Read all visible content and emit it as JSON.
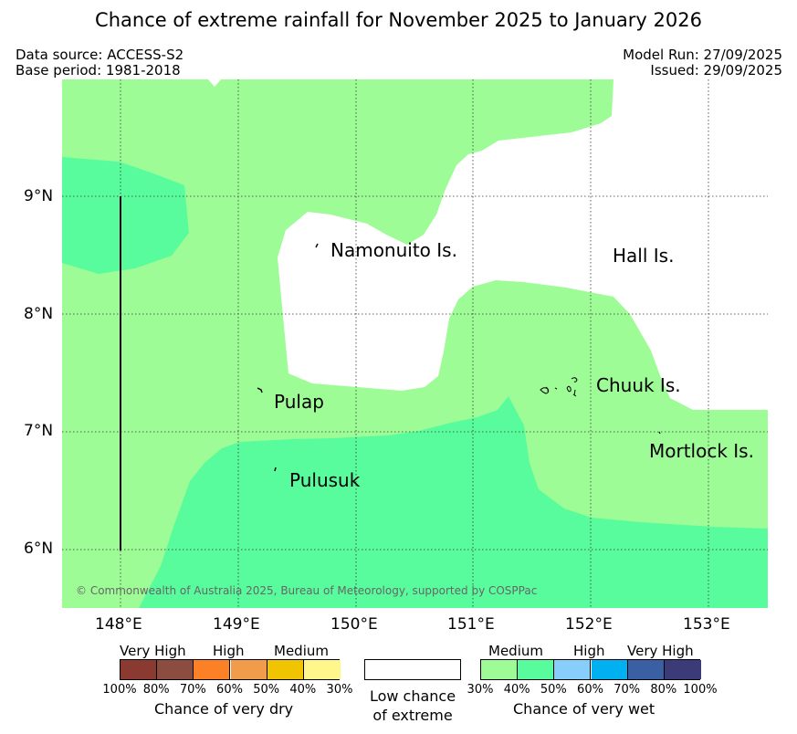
{
  "title": "Chance of extreme rainfall for November 2025 to January 2026",
  "meta": {
    "data_source": "Data source: ACCESS-S2",
    "base_period": "Base period: 1981-2018",
    "model_run": "Model Run: 27/09/2025",
    "issued": "Issued: 29/09/2025"
  },
  "map": {
    "copyright": "© Commonwealth of Australia 2025, Bureau of Meteorology, supported by COSPPac",
    "lat_ticks": [
      "9°N",
      "8°N",
      "7°N",
      "6°N"
    ],
    "lon_ticks": [
      "148°E",
      "149°E",
      "150°E",
      "151°E",
      "152°E",
      "153°E"
    ],
    "places": {
      "namonuito": "Namonuito Is.",
      "hall": "Hall Is.",
      "chuuk": "Chuuk Is.",
      "pulap": "Pulap",
      "mortlock": "Mortlock Is.",
      "pulusuk": "Pulusuk"
    },
    "colors": {
      "wet_medium": "#9efc96",
      "wet_high": "#58fc9c",
      "low_chance": "#ffffff"
    }
  },
  "legend": {
    "dry": {
      "head_very_high": "Very High",
      "head_high": "High",
      "head_medium": "Medium",
      "ticks": [
        "100%",
        "80%",
        "70%",
        "60%",
        "50%",
        "40%",
        "30%"
      ],
      "colors": [
        "#8b3a32",
        "#8b4d3f",
        "#fc8126",
        "#f09c4a",
        "#f1c402",
        "#fff68c"
      ],
      "caption": "Chance of very dry"
    },
    "neutral": {
      "line1": "Low chance",
      "line2": "of extreme"
    },
    "wet": {
      "head_medium": "Medium",
      "head_high": "High",
      "head_very_high": "Very High",
      "ticks": [
        "30%",
        "40%",
        "50%",
        "60%",
        "70%",
        "80%",
        "100%"
      ],
      "colors": [
        "#9efc96",
        "#58fc9c",
        "#87cefa",
        "#00b0f0",
        "#3a5fa2",
        "#3b3b78"
      ],
      "caption": "Chance of very wet"
    }
  }
}
